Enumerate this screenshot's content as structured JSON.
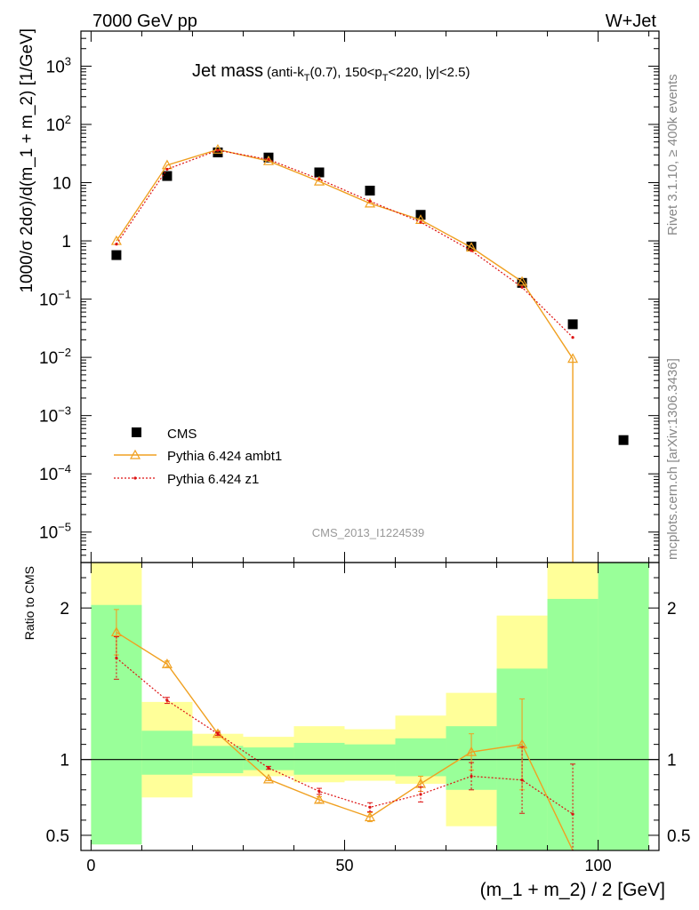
{
  "header": {
    "left": "7000 GeV pp",
    "right": "W+Jet",
    "title_main": "Jet mass",
    "title_detail_1": "(anti-k",
    "title_detail_sub1": "T",
    "title_detail_2": "(0.7), 150<p",
    "title_detail_sub2": "T",
    "title_detail_3": "<220, |y|<2.5)",
    "analysis_id": "CMS_2013_I1224539",
    "side_label_1": "Rivet 3.1.10, ≥ 400k events",
    "side_label_2": "mcplots.cern.ch [arXiv:1306.3436]"
  },
  "chart_data": [
    {
      "type": "scatter",
      "panel": "main",
      "ylabel": "1000/σ 2dσ)/d(m_1 + m_2) [1/GeV]",
      "yscale": "log",
      "ylim": [
        3e-06,
        4000
      ],
      "xlim": [
        -2,
        112
      ],
      "yticks": [
        {
          "v": 1e-05,
          "base": "10",
          "exp": "−5"
        },
        {
          "v": 0.0001,
          "base": "10",
          "exp": "−4"
        },
        {
          "v": 0.001,
          "base": "10",
          "exp": "−3"
        },
        {
          "v": 0.01,
          "base": "10",
          "exp": "−2"
        },
        {
          "v": 0.1,
          "base": "10",
          "exp": "−1"
        },
        {
          "v": 1,
          "base": "1",
          "exp": ""
        },
        {
          "v": 10,
          "base": "10",
          "exp": ""
        },
        {
          "v": 100,
          "base": "10",
          "exp": "2"
        },
        {
          "v": 1000,
          "base": "10",
          "exp": "3"
        }
      ],
      "legend": {
        "position": "bottom-left",
        "entries": [
          "CMS",
          "Pythia 6.424 ambt1",
          "Pythia 6.424 z1"
        ]
      },
      "series": [
        {
          "name": "CMS",
          "style": "square",
          "color": "#000000",
          "x": [
            5,
            15,
            25,
            35,
            45,
            55,
            65,
            75,
            85,
            95,
            105
          ],
          "y": [
            0.57,
            13,
            33,
            27,
            15,
            7.3,
            2.8,
            0.8,
            0.19,
            0.037,
            0.00038
          ]
        },
        {
          "name": "Pythia 6.424 ambt1",
          "style": "triangle-line",
          "color": "#f0a020",
          "x": [
            5,
            15,
            25,
            35,
            45,
            55,
            65,
            75,
            85,
            95
          ],
          "y": [
            1.0,
            20,
            37,
            23.5,
            10.5,
            4.4,
            2.3,
            0.77,
            0.2,
            0.0095
          ],
          "drop_to_bottom_at_x": 95
        },
        {
          "name": "Pythia 6.424 z1",
          "style": "dotted-point",
          "color": "#dd1111",
          "x": [
            5,
            15,
            25,
            35,
            45,
            55,
            65,
            75,
            85,
            95
          ],
          "y": [
            0.88,
            17,
            36,
            25,
            11.5,
            4.8,
            2.1,
            0.68,
            0.16,
            0.022
          ]
        }
      ]
    },
    {
      "type": "line",
      "panel": "ratio",
      "ylabel": "Ratio to CMS",
      "xlabel": "(m_1 + m_2) / 2 [GeV]",
      "ylim": [
        0.4,
        2.3
      ],
      "xlim": [
        -2,
        112
      ],
      "yticks": [
        0.5,
        1,
        2
      ],
      "xticks": [
        0,
        50,
        100
      ],
      "bins": [
        {
          "lo": 0,
          "hi": 10,
          "g": [
            0.44,
            2.02
          ],
          "y": [
            0.44,
            2.3
          ]
        },
        {
          "lo": 10,
          "hi": 20,
          "g": [
            0.9,
            1.19
          ],
          "y": [
            0.75,
            1.38
          ]
        },
        {
          "lo": 20,
          "hi": 30,
          "g": [
            0.91,
            1.09
          ],
          "y": [
            0.89,
            1.17
          ]
        },
        {
          "lo": 30,
          "hi": 40,
          "g": [
            0.93,
            1.08
          ],
          "y": [
            0.89,
            1.15
          ]
        },
        {
          "lo": 40,
          "hi": 50,
          "g": [
            0.9,
            1.11
          ],
          "y": [
            0.85,
            1.22
          ]
        },
        {
          "lo": 50,
          "hi": 60,
          "g": [
            0.9,
            1.1
          ],
          "y": [
            0.86,
            1.2
          ]
        },
        {
          "lo": 60,
          "hi": 70,
          "g": [
            0.89,
            1.14
          ],
          "y": [
            0.84,
            1.29
          ]
        },
        {
          "lo": 70,
          "hi": 80,
          "g": [
            0.8,
            1.22
          ],
          "y": [
            0.56,
            1.44
          ]
        },
        {
          "lo": 80,
          "hi": 90,
          "g": [
            0.4,
            1.6
          ],
          "y": [
            0.4,
            1.95
          ]
        },
        {
          "lo": 90,
          "hi": 100,
          "g": [
            0.4,
            2.06
          ],
          "y": [
            0.4,
            2.3
          ]
        },
        {
          "lo": 100,
          "hi": 110,
          "g": [
            0.4,
            2.3
          ],
          "y": [
            0.4,
            2.3
          ]
        }
      ],
      "series": [
        {
          "name": "Pythia 6.424 ambt1",
          "color": "#f0a020",
          "x": [
            5,
            15,
            25,
            35,
            45,
            55,
            65,
            75,
            85,
            95
          ],
          "y": [
            1.84,
            1.63,
            1.17,
            0.87,
            0.735,
            0.62,
            0.84,
            1.05,
            1.1,
            0.2
          ],
          "err": [
            0.15,
            0.02,
            0.02,
            0.01,
            0.02,
            0.03,
            0.05,
            0.12,
            0.3,
            0
          ]
        },
        {
          "name": "Pythia 6.424 z1",
          "color": "#dd1111",
          "x": [
            5,
            15,
            25,
            35,
            45,
            55,
            65,
            75,
            85,
            95
          ],
          "y": [
            1.67,
            1.39,
            1.17,
            0.945,
            0.79,
            0.685,
            0.77,
            0.89,
            0.865,
            0.64
          ],
          "err": [
            0.14,
            0.02,
            0.01,
            0.01,
            0.02,
            0.03,
            0.05,
            0.09,
            0.22,
            0.33
          ]
        }
      ]
    }
  ]
}
